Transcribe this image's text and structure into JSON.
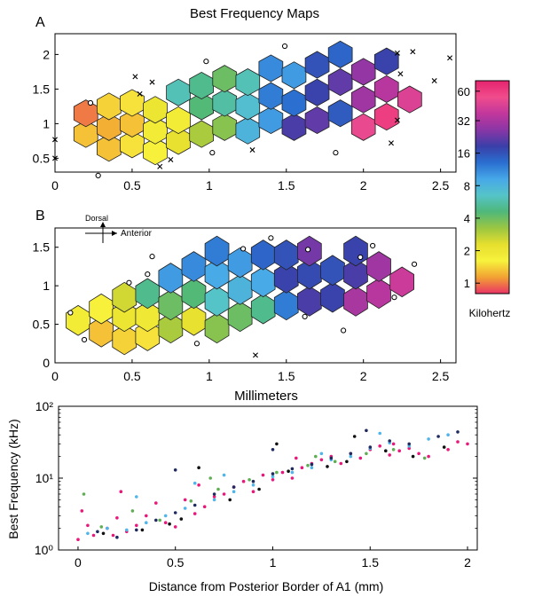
{
  "figure": {
    "title": "Best Frequency Maps",
    "panel_a_label": "A",
    "panel_b_label": "B",
    "shared_xlabel": "Millimeters",
    "orientation": {
      "dorsal": "Dorsal",
      "anterior": "Anterior"
    },
    "colorbar": {
      "label": "Kilohertz",
      "ticks": [
        "60",
        "32",
        "16",
        "8",
        "4",
        "2",
        "1"
      ],
      "tick_values": [
        60,
        32,
        16,
        8,
        4,
        2,
        1
      ],
      "range": [
        0.8,
        75
      ],
      "colors": [
        "#e6246e",
        "#f04c8c",
        "#c2379c",
        "#8a36a6",
        "#3a3fa8",
        "#2a6fd0",
        "#47a8e8",
        "#55c4c8",
        "#4fb87a",
        "#9ac642",
        "#e6df2e",
        "#f7f23c",
        "#f2a233",
        "#ea3366"
      ]
    }
  },
  "chart_data": [
    {
      "type": "heatmap",
      "panel": "A",
      "title": "Best Frequency Maps",
      "xlim": [
        0,
        2.6
      ],
      "ylim": [
        0.3,
        2.3
      ],
      "xticks": [
        "0",
        "0.5",
        "1",
        "1.5",
        "2",
        "2.5"
      ],
      "yticks": [
        "0.5",
        "1",
        "1.5",
        "2"
      ],
      "cells": [
        {
          "x": 0.2,
          "y": 0.85,
          "bf": 1.3
        },
        {
          "x": 0.2,
          "y": 1.15,
          "bf": 1.0
        },
        {
          "x": 0.35,
          "y": 0.65,
          "bf": 1.3
        },
        {
          "x": 0.35,
          "y": 0.95,
          "bf": 1.2
        },
        {
          "x": 0.35,
          "y": 1.25,
          "bf": 1.4
        },
        {
          "x": 0.5,
          "y": 0.7,
          "bf": 1.5
        },
        {
          "x": 0.5,
          "y": 1.0,
          "bf": 1.3
        },
        {
          "x": 0.5,
          "y": 1.3,
          "bf": 1.5
        },
        {
          "x": 0.65,
          "y": 0.6,
          "bf": 1.6
        },
        {
          "x": 0.65,
          "y": 0.9,
          "bf": 1.8
        },
        {
          "x": 0.65,
          "y": 1.2,
          "bf": 2.0
        },
        {
          "x": 0.8,
          "y": 0.75,
          "bf": 2.2
        },
        {
          "x": 0.8,
          "y": 1.05,
          "bf": 1.8
        },
        {
          "x": 0.8,
          "y": 1.45,
          "bf": 6.0
        },
        {
          "x": 0.95,
          "y": 0.85,
          "bf": 3.0
        },
        {
          "x": 0.95,
          "y": 1.25,
          "bf": 4.5
        },
        {
          "x": 0.95,
          "y": 1.55,
          "bf": 5.0
        },
        {
          "x": 1.1,
          "y": 0.95,
          "bf": 3.5
        },
        {
          "x": 1.1,
          "y": 1.3,
          "bf": 5.5
        },
        {
          "x": 1.1,
          "y": 1.65,
          "bf": 4.0
        },
        {
          "x": 1.25,
          "y": 0.9,
          "bf": 8.0
        },
        {
          "x": 1.25,
          "y": 1.25,
          "bf": 7.0
        },
        {
          "x": 1.25,
          "y": 1.6,
          "bf": 6.0
        },
        {
          "x": 1.4,
          "y": 1.05,
          "bf": 10.0
        },
        {
          "x": 1.4,
          "y": 1.4,
          "bf": 12.0
        },
        {
          "x": 1.4,
          "y": 1.8,
          "bf": 11.0
        },
        {
          "x": 1.55,
          "y": 0.95,
          "bf": 20.0
        },
        {
          "x": 1.55,
          "y": 1.3,
          "bf": 13.0
        },
        {
          "x": 1.55,
          "y": 1.7,
          "bf": 10.0
        },
        {
          "x": 1.7,
          "y": 1.05,
          "bf": 22.0
        },
        {
          "x": 1.7,
          "y": 1.45,
          "bf": 18.0
        },
        {
          "x": 1.7,
          "y": 1.85,
          "bf": 16.0
        },
        {
          "x": 1.85,
          "y": 1.15,
          "bf": 15.0
        },
        {
          "x": 1.85,
          "y": 1.6,
          "bf": 22.0
        },
        {
          "x": 1.85,
          "y": 2.0,
          "bf": 14.0
        },
        {
          "x": 2.0,
          "y": 0.95,
          "bf": 50.0
        },
        {
          "x": 2.0,
          "y": 1.35,
          "bf": 30.0
        },
        {
          "x": 2.0,
          "y": 1.75,
          "bf": 28.0
        },
        {
          "x": 2.15,
          "y": 1.1,
          "bf": 60.0
        },
        {
          "x": 2.15,
          "y": 1.5,
          "bf": 35.0
        },
        {
          "x": 2.15,
          "y": 1.9,
          "bf": 18.0
        },
        {
          "x": 2.3,
          "y": 1.35,
          "bf": 45.0
        }
      ],
      "unresponsive_sites": [
        {
          "x": 0.23,
          "y": 1.3
        },
        {
          "x": 0.28,
          "y": 0.25
        },
        {
          "x": 0.98,
          "y": 1.9
        },
        {
          "x": 1.49,
          "y": 2.12
        },
        {
          "x": 1.82,
          "y": 0.58
        },
        {
          "x": 1.02,
          "y": 0.58
        }
      ],
      "boundary_sites": [
        {
          "x": 0.0,
          "y": 0.77
        },
        {
          "x": 0.0,
          "y": 0.5
        },
        {
          "x": 0.52,
          "y": 1.68
        },
        {
          "x": 0.55,
          "y": 1.43
        },
        {
          "x": 0.63,
          "y": 1.6
        },
        {
          "x": 0.68,
          "y": 0.38
        },
        {
          "x": 0.75,
          "y": 0.48
        },
        {
          "x": 1.28,
          "y": 0.62
        },
        {
          "x": 2.22,
          "y": 1.05
        },
        {
          "x": 2.24,
          "y": 1.72
        },
        {
          "x": 2.32,
          "y": 2.04
        },
        {
          "x": 2.22,
          "y": 2.02
        },
        {
          "x": 2.46,
          "y": 1.62
        },
        {
          "x": 2.56,
          "y": 1.95
        },
        {
          "x": 2.18,
          "y": 0.72
        }
      ]
    },
    {
      "type": "heatmap",
      "panel": "B",
      "xlim": [
        0,
        2.6
      ],
      "ylim": [
        0,
        1.75
      ],
      "xticks": [
        "0",
        "0.5",
        "1",
        "1.5",
        "2",
        "2.5"
      ],
      "yticks": [
        "0",
        "0.5",
        "1",
        "1.5"
      ],
      "xlabel": "Millimeters",
      "cells": [
        {
          "x": 0.15,
          "y": 0.55,
          "bf": 1.8
        },
        {
          "x": 0.3,
          "y": 0.4,
          "bf": 1.3
        },
        {
          "x": 0.3,
          "y": 0.7,
          "bf": 1.6
        },
        {
          "x": 0.45,
          "y": 0.3,
          "bf": 1.4
        },
        {
          "x": 0.45,
          "y": 0.6,
          "bf": 2.0
        },
        {
          "x": 0.45,
          "y": 0.85,
          "bf": 2.5
        },
        {
          "x": 0.6,
          "y": 0.35,
          "bf": 1.5
        },
        {
          "x": 0.6,
          "y": 0.6,
          "bf": 1.9
        },
        {
          "x": 0.6,
          "y": 0.9,
          "bf": 5.0
        },
        {
          "x": 0.75,
          "y": 0.45,
          "bf": 3.0
        },
        {
          "x": 0.75,
          "y": 0.75,
          "bf": 4.0
        },
        {
          "x": 0.75,
          "y": 1.1,
          "bf": 10.0
        },
        {
          "x": 0.9,
          "y": 0.55,
          "bf": 2.2
        },
        {
          "x": 0.9,
          "y": 0.9,
          "bf": 4.5
        },
        {
          "x": 0.9,
          "y": 1.25,
          "bf": 11.0
        },
        {
          "x": 1.05,
          "y": 0.45,
          "bf": 3.5
        },
        {
          "x": 1.05,
          "y": 0.8,
          "bf": 6.5
        },
        {
          "x": 1.05,
          "y": 1.15,
          "bf": 9.0
        },
        {
          "x": 1.05,
          "y": 1.45,
          "bf": 12.0
        },
        {
          "x": 1.2,
          "y": 0.6,
          "bf": 4.0
        },
        {
          "x": 1.2,
          "y": 0.95,
          "bf": 8.0
        },
        {
          "x": 1.2,
          "y": 1.3,
          "bf": 10.0
        },
        {
          "x": 1.35,
          "y": 0.7,
          "bf": 5.0
        },
        {
          "x": 1.35,
          "y": 1.05,
          "bf": 9.0
        },
        {
          "x": 1.35,
          "y": 1.4,
          "bf": 14.0
        },
        {
          "x": 1.5,
          "y": 0.75,
          "bf": 12.0
        },
        {
          "x": 1.5,
          "y": 1.1,
          "bf": 18.0
        },
        {
          "x": 1.5,
          "y": 1.4,
          "bf": 16.0
        },
        {
          "x": 1.65,
          "y": 0.8,
          "bf": 20.0
        },
        {
          "x": 1.65,
          "y": 1.15,
          "bf": 17.0
        },
        {
          "x": 1.65,
          "y": 1.45,
          "bf": 24.0
        },
        {
          "x": 1.8,
          "y": 0.85,
          "bf": 18.0
        },
        {
          "x": 1.8,
          "y": 1.2,
          "bf": 16.0
        },
        {
          "x": 1.95,
          "y": 0.8,
          "bf": 32.0
        },
        {
          "x": 1.95,
          "y": 1.15,
          "bf": 20.0
        },
        {
          "x": 1.95,
          "y": 1.45,
          "bf": 18.0
        },
        {
          "x": 2.1,
          "y": 0.9,
          "bf": 35.0
        },
        {
          "x": 2.1,
          "y": 1.25,
          "bf": 30.0
        },
        {
          "x": 2.25,
          "y": 1.05,
          "bf": 40.0
        }
      ],
      "unresponsive_sites": [
        {
          "x": 0.1,
          "y": 0.65
        },
        {
          "x": 0.19,
          "y": 0.3
        },
        {
          "x": 0.48,
          "y": 1.04
        },
        {
          "x": 0.6,
          "y": 1.15
        },
        {
          "x": 0.63,
          "y": 1.38
        },
        {
          "x": 0.92,
          "y": 0.25
        },
        {
          "x": 1.22,
          "y": 1.48
        },
        {
          "x": 1.4,
          "y": 1.62
        },
        {
          "x": 1.62,
          "y": 0.6
        },
        {
          "x": 1.64,
          "y": 1.47
        },
        {
          "x": 1.87,
          "y": 0.42
        },
        {
          "x": 1.98,
          "y": 1.37
        },
        {
          "x": 2.06,
          "y": 1.52
        },
        {
          "x": 2.2,
          "y": 0.85
        },
        {
          "x": 2.33,
          "y": 1.28
        }
      ],
      "boundary_sites": [
        {
          "x": 1.3,
          "y": 0.1
        }
      ]
    },
    {
      "type": "scatter",
      "panel": "C",
      "xlabel": "Distance from Posterior Border of A1 (mm)",
      "ylabel": "Best Frequency (kHz)",
      "xlim": [
        -0.1,
        2.05
      ],
      "yscale": "log",
      "ylim": [
        1,
        100
      ],
      "xticks": [
        "0",
        "0.5",
        "1",
        "1.5",
        "2"
      ],
      "yticks": [
        "10⁰",
        "10¹",
        "10²"
      ],
      "series": [
        {
          "color": "#e8197a",
          "points": [
            [
              0.0,
              1.4
            ],
            [
              0.02,
              3.5
            ],
            [
              0.05,
              2.2
            ],
            [
              0.08,
              1.6
            ],
            [
              0.15,
              2.0
            ],
            [
              0.18,
              1.6
            ],
            [
              0.2,
              2.8
            ],
            [
              0.25,
              1.8
            ],
            [
              0.3,
              2.2
            ],
            [
              0.35,
              3.0
            ],
            [
              0.4,
              4.5
            ],
            [
              0.45,
              2.4
            ],
            [
              0.5,
              2.1
            ],
            [
              0.55,
              5.0
            ],
            [
              0.6,
              3.2
            ],
            [
              0.65,
              4.0
            ],
            [
              0.7,
              5.5
            ],
            [
              0.75,
              6.0
            ],
            [
              0.8,
              7.5
            ],
            [
              0.85,
              9.0
            ],
            [
              0.9,
              6.5
            ],
            [
              0.95,
              11.0
            ],
            [
              1.0,
              9.5
            ],
            [
              1.05,
              12.0
            ],
            [
              1.1,
              10.0
            ],
            [
              1.15,
              14.0
            ],
            [
              1.2,
              16.0
            ],
            [
              1.25,
              18.0
            ],
            [
              1.3,
              20.0
            ],
            [
              1.35,
              16.0
            ],
            [
              1.4,
              22.0
            ],
            [
              1.45,
              19.0
            ],
            [
              1.5,
              25.0
            ],
            [
              1.55,
              28.0
            ],
            [
              1.6,
              21.0
            ],
            [
              1.65,
              24.0
            ],
            [
              1.7,
              26.0
            ],
            [
              1.75,
              22.0
            ],
            [
              1.8,
              20.0
            ],
            [
              1.9,
              25.0
            ],
            [
              1.95,
              32.0
            ],
            [
              2.0,
              30.0
            ],
            [
              0.22,
              6.5
            ],
            [
              0.62,
              8.0
            ],
            [
              1.12,
              19.0
            ],
            [
              1.62,
              30.0
            ]
          ]
        },
        {
          "color": "#4fb5ea",
          "points": [
            [
              0.05,
              1.7
            ],
            [
              0.15,
              2.0
            ],
            [
              0.25,
              1.9
            ],
            [
              0.35,
              2.4
            ],
            [
              0.45,
              3.0
            ],
            [
              0.55,
              3.8
            ],
            [
              0.6,
              8.5
            ],
            [
              0.7,
              5.0
            ],
            [
              0.8,
              6.5
            ],
            [
              0.9,
              8.0
            ],
            [
              1.0,
              10.5
            ],
            [
              1.1,
              12.0
            ],
            [
              1.2,
              14.0
            ],
            [
              1.3,
              18.0
            ],
            [
              1.4,
              20.0
            ],
            [
              1.5,
              26.0
            ],
            [
              1.6,
              31.0
            ],
            [
              1.7,
              28.0
            ],
            [
              1.8,
              35.0
            ],
            [
              1.9,
              40.0
            ],
            [
              0.3,
              5.5
            ],
            [
              0.75,
              11.0
            ],
            [
              1.25,
              22.0
            ],
            [
              1.55,
              42.0
            ]
          ]
        },
        {
          "color": "#1f2a5e",
          "points": [
            [
              0.1,
              1.8
            ],
            [
              0.2,
              1.5
            ],
            [
              0.3,
              1.9
            ],
            [
              0.4,
              2.6
            ],
            [
              0.5,
              3.3
            ],
            [
              0.6,
              4.2
            ],
            [
              0.7,
              6.0
            ],
            [
              0.8,
              7.5
            ],
            [
              0.9,
              9.0
            ],
            [
              1.0,
              11.5
            ],
            [
              1.1,
              13.5
            ],
            [
              1.2,
              15.5
            ],
            [
              1.3,
              19.0
            ],
            [
              1.4,
              22.0
            ],
            [
              1.5,
              27.0
            ],
            [
              1.6,
              33.0
            ],
            [
              1.7,
              30.0
            ],
            [
              1.85,
              38.0
            ],
            [
              1.95,
              44.0
            ],
            [
              0.5,
              13.0
            ],
            [
              1.0,
              25.0
            ],
            [
              1.48,
              46.0
            ]
          ]
        },
        {
          "color": "#5fae54",
          "points": [
            [
              0.03,
              6.0
            ],
            [
              0.12,
              2.1
            ],
            [
              0.28,
              3.5
            ],
            [
              0.42,
              2.6
            ],
            [
              0.58,
              4.8
            ],
            [
              0.72,
              7.0
            ],
            [
              0.88,
              9.5
            ],
            [
              1.02,
              12.0
            ],
            [
              1.18,
              15.0
            ],
            [
              1.32,
              17.0
            ],
            [
              1.48,
              22.0
            ],
            [
              1.62,
              25.0
            ],
            [
              1.78,
              19.0
            ],
            [
              0.68,
              10.0
            ],
            [
              1.22,
              20.0
            ]
          ]
        },
        {
          "color": "#111111",
          "points": [
            [
              0.13,
              1.7
            ],
            [
              0.33,
              1.9
            ],
            [
              0.47,
              2.3
            ],
            [
              0.53,
              2.7
            ],
            [
              0.78,
              5.0
            ],
            [
              0.93,
              7.0
            ],
            [
              1.08,
              12.5
            ],
            [
              1.28,
              14.5
            ],
            [
              1.38,
              17.0
            ],
            [
              1.58,
              24.0
            ],
            [
              1.72,
              20.0
            ],
            [
              1.88,
              27.0
            ],
            [
              0.62,
              14.0
            ],
            [
              1.02,
              30.0
            ],
            [
              1.42,
              38.0
            ]
          ]
        }
      ]
    }
  ]
}
